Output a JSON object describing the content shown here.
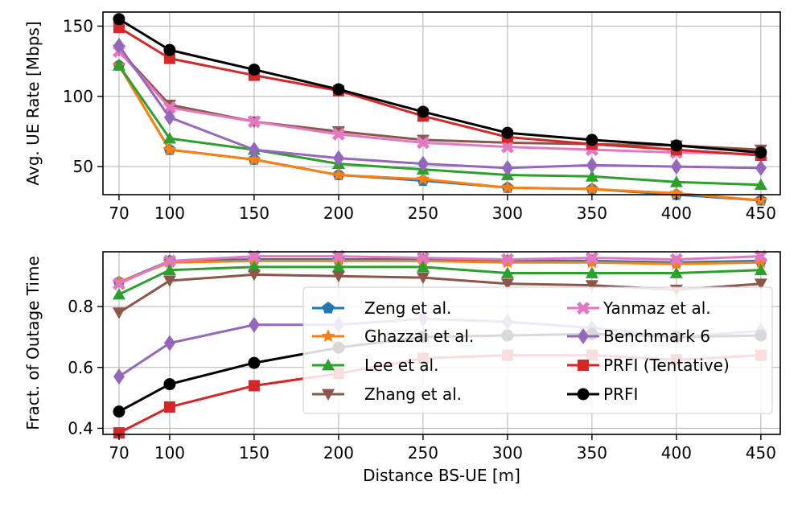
{
  "chart_data": {
    "type": "line",
    "x": [
      70,
      100,
      150,
      200,
      250,
      300,
      350,
      400,
      450
    ],
    "xticks": [
      "70",
      "100",
      "150",
      "200",
      "250",
      "300",
      "350",
      "400",
      "450"
    ],
    "xlabel": "Distance BS-UE [m]",
    "grid": true,
    "legend_location": "lower-right of bottom panel",
    "series_styles": [
      {
        "name": "Zeng et al.",
        "color": "#1f77b4",
        "marker": "pentagon"
      },
      {
        "name": "Ghazzai et al.",
        "color": "#ff7f0e",
        "marker": "star"
      },
      {
        "name": "Lee et al.",
        "color": "#2ca02c",
        "marker": "triangle-up"
      },
      {
        "name": "Zhang et al.",
        "color": "#8c564b",
        "marker": "triangle-down"
      },
      {
        "name": "Yanmaz et al.",
        "color": "#e377c2",
        "marker": "x-filled"
      },
      {
        "name": "Benchmark 6",
        "color": "#9467bd",
        "marker": "diamond"
      },
      {
        "name": "PRFI (Tentative)",
        "color": "#d62728",
        "marker": "square"
      },
      {
        "name": "PRFI",
        "color": "#000000",
        "marker": "circle"
      }
    ],
    "panels": [
      {
        "ylabel": "Avg. UE Rate [Mbps]",
        "ylim": [
          30,
          160
        ],
        "yticks": [
          50,
          100,
          150
        ],
        "series": [
          {
            "name": "Zeng et al.",
            "values": [
              122,
              62,
              55,
              44,
              40,
              35,
              34,
              30,
              26
            ]
          },
          {
            "name": "Ghazzai et al.",
            "values": [
              122,
              62,
              55,
              44,
              41,
              35,
              34,
              31,
              26
            ]
          },
          {
            "name": "Lee et al.",
            "values": [
              122,
              70,
              62,
              52,
              48,
              44,
              43,
              39,
              37
            ]
          },
          {
            "name": "Zhang et al.",
            "values": [
              133,
              94,
              82,
              75,
              69,
              67,
              66,
              65,
              62
            ]
          },
          {
            "name": "Yanmaz et al.",
            "values": [
              132,
              92,
              82,
              73,
              67,
              64,
              62,
              60,
              59
            ]
          },
          {
            "name": "Benchmark 6",
            "values": [
              136,
              85,
              62,
              56,
              52,
              49,
              51,
              50,
              49
            ]
          },
          {
            "name": "PRFI (Tentative)",
            "values": [
              149,
              127,
              115,
              104,
              86,
              71,
              66,
              62,
              58
            ]
          },
          {
            "name": "PRFI",
            "values": [
              155,
              133,
              119,
              105,
              89,
              74,
              69,
              65,
              60
            ]
          }
        ]
      },
      {
        "ylabel": "Fract. of Outage Time",
        "ylim": [
          0.38,
          0.98
        ],
        "yticks": [
          0.4,
          0.6,
          0.8
        ],
        "yticklabels": [
          "0.4",
          "0.6",
          "0.8"
        ],
        "series": [
          {
            "name": "Zeng et al.",
            "values": [
              0.88,
              0.95,
              0.955,
              0.955,
              0.955,
              0.95,
              0.95,
              0.945,
              0.95
            ]
          },
          {
            "name": "Ghazzai et al.",
            "values": [
              0.88,
              0.945,
              0.95,
              0.95,
              0.95,
              0.945,
              0.945,
              0.94,
              0.945
            ]
          },
          {
            "name": "Lee et al.",
            "values": [
              0.84,
              0.92,
              0.93,
              0.93,
              0.93,
              0.91,
              0.91,
              0.91,
              0.92
            ]
          },
          {
            "name": "Zhang et al.",
            "values": [
              0.78,
              0.885,
              0.905,
              0.9,
              0.895,
              0.875,
              0.87,
              0.855,
              0.875
            ]
          },
          {
            "name": "Yanmaz et al.",
            "values": [
              0.875,
              0.95,
              0.965,
              0.965,
              0.96,
              0.955,
              0.96,
              0.955,
              0.965
            ]
          },
          {
            "name": "Benchmark 6",
            "values": [
              0.57,
              0.68,
              0.74,
              0.74,
              0.76,
              0.75,
              0.73,
              0.7,
              0.72
            ]
          },
          {
            "name": "PRFI (Tentative)",
            "values": [
              0.385,
              0.47,
              0.54,
              0.58,
              0.63,
              0.64,
              0.64,
              0.625,
              0.64
            ]
          },
          {
            "name": "PRFI",
            "values": [
              0.455,
              0.545,
              0.615,
              0.665,
              0.7,
              0.705,
              0.71,
              0.7,
              0.705
            ]
          }
        ]
      }
    ]
  }
}
